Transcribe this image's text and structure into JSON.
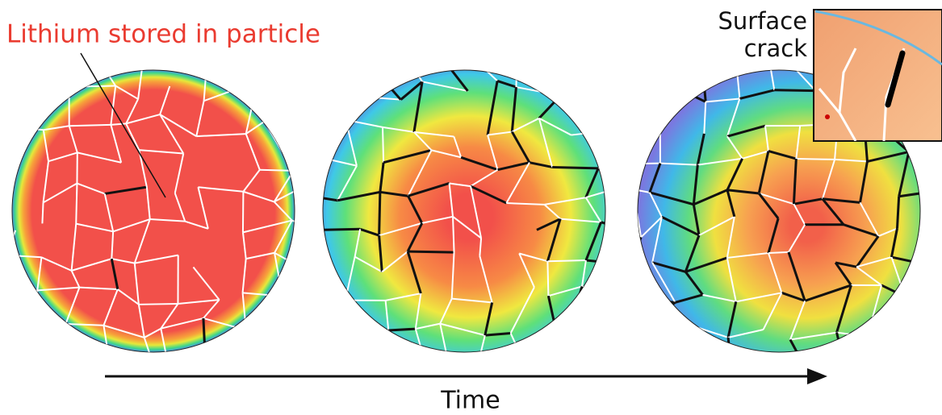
{
  "labels": {
    "particle": "Lithium stored in particle",
    "crack": [
      "Surface",
      "crack"
    ],
    "axis": "Time"
  }
}
